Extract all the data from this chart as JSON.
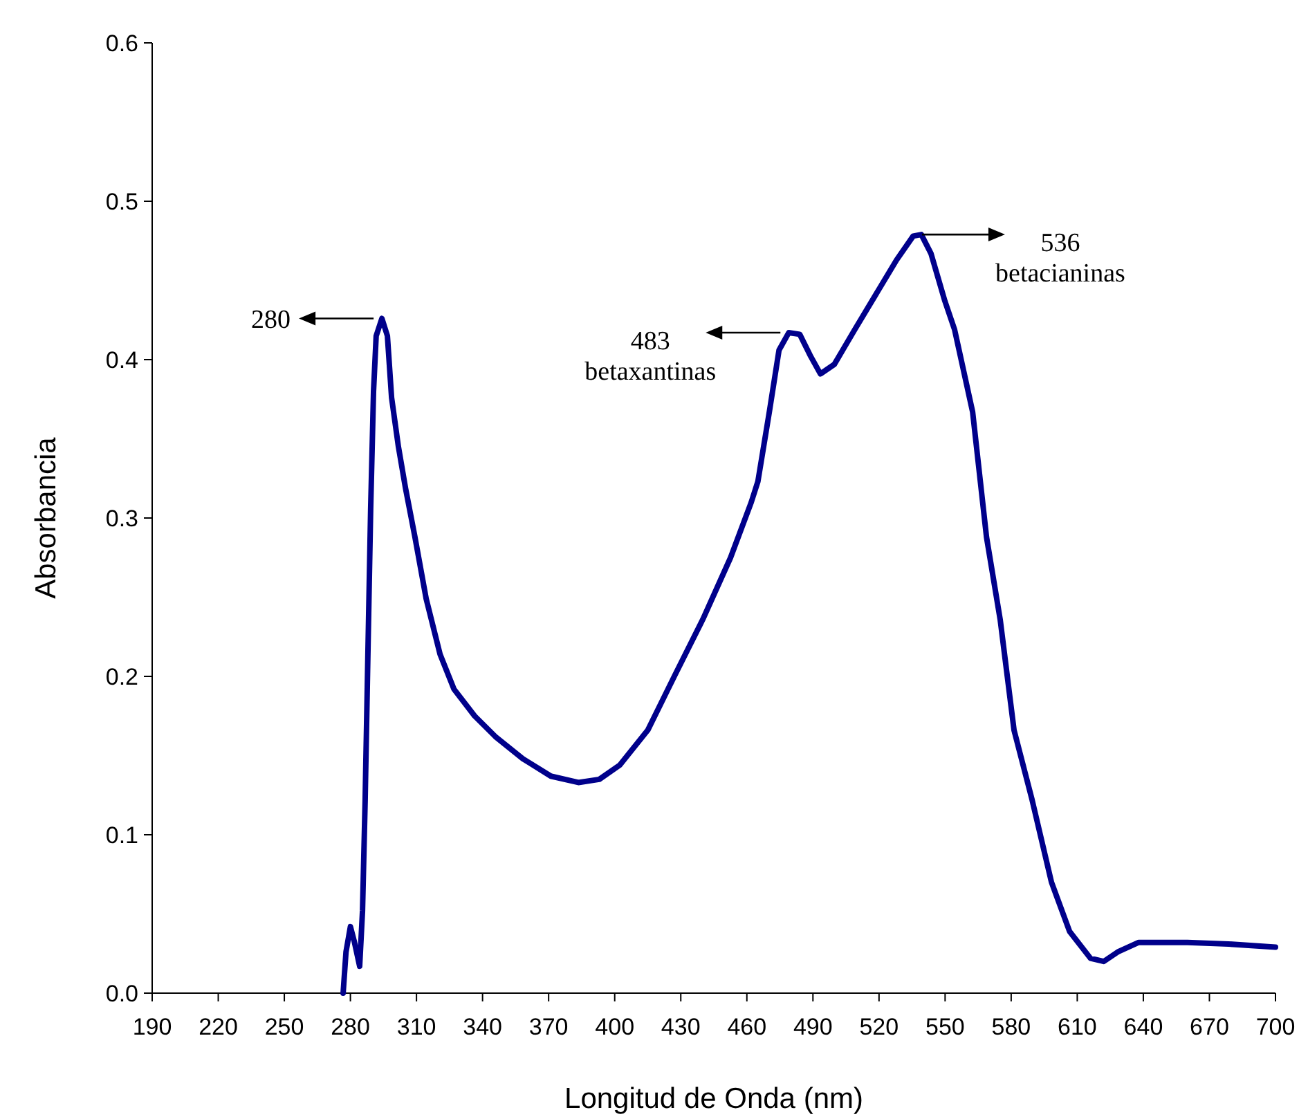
{
  "chart_data": {
    "type": "line",
    "xlabel": "Longitud de Onda (nm)",
    "ylabel": "Absorbancia",
    "xlim": [
      190,
      700
    ],
    "xticks": [
      190,
      220,
      250,
      280,
      310,
      340,
      370,
      400,
      430,
      460,
      490,
      520,
      550,
      580,
      610,
      640,
      670,
      700
    ],
    "ylim": [
      0,
      0.6
    ],
    "yticks": [
      {
        "value": 0,
        "label": "0.0"
      },
      0.1,
      0.2,
      0.3,
      0.4,
      0.5,
      0.6
    ],
    "grid": false,
    "series": [
      {
        "color": "#00008b",
        "x": [
          276.7,
          278,
          280,
          281.7,
          284.2,
          285.5,
          286.7,
          288,
          289.2,
          290.5,
          291.7,
          294.3,
          296.8,
          298.7,
          301.8,
          305,
          309.3,
          314.4,
          320.7,
          327,
          336.4,
          345.8,
          358.3,
          371,
          383.5,
          393,
          402.3,
          415,
          427.4,
          440,
          452.6,
          462,
          465,
          470.2,
          474.6,
          479,
          484,
          489,
          493.4,
          499.7,
          509,
          518.5,
          528,
          535.5,
          539.2,
          543.6,
          549.9,
          554.3,
          562.5,
          568.8,
          575,
          581.3,
          589.5,
          598.3,
          606.5,
          616,
          622,
          628.4,
          637.9,
          660,
          678.7,
          700
        ],
        "values": [
          0,
          0.026,
          0.042,
          0.033,
          0.017,
          0.052,
          0.122,
          0.218,
          0.306,
          0.38,
          0.415,
          0.426,
          0.415,
          0.376,
          0.345,
          0.319,
          0.288,
          0.249,
          0.214,
          0.192,
          0.175,
          0.162,
          0.148,
          0.137,
          0.133,
          0.135,
          0.144,
          0.166,
          0.201,
          0.236,
          0.275,
          0.31,
          0.323,
          0.367,
          0.406,
          0.417,
          0.416,
          0.402,
          0.391,
          0.397,
          0.419,
          0.441,
          0.463,
          0.478,
          0.479,
          0.467,
          0.437,
          0.419,
          0.367,
          0.288,
          0.236,
          0.166,
          0.122,
          0.07,
          0.039,
          0.022,
          0.02,
          0.026,
          0.032,
          0.032,
          0.031,
          0.029
        ]
      }
    ],
    "annotations": [
      {
        "text": "280",
        "x": 294.3,
        "y": 0.426
      },
      {
        "text": "483\nbetaxantinas",
        "x": 479,
        "y": 0.417
      },
      {
        "text": "536\nbetacianinas",
        "x": 537,
        "y": 0.479
      }
    ]
  }
}
